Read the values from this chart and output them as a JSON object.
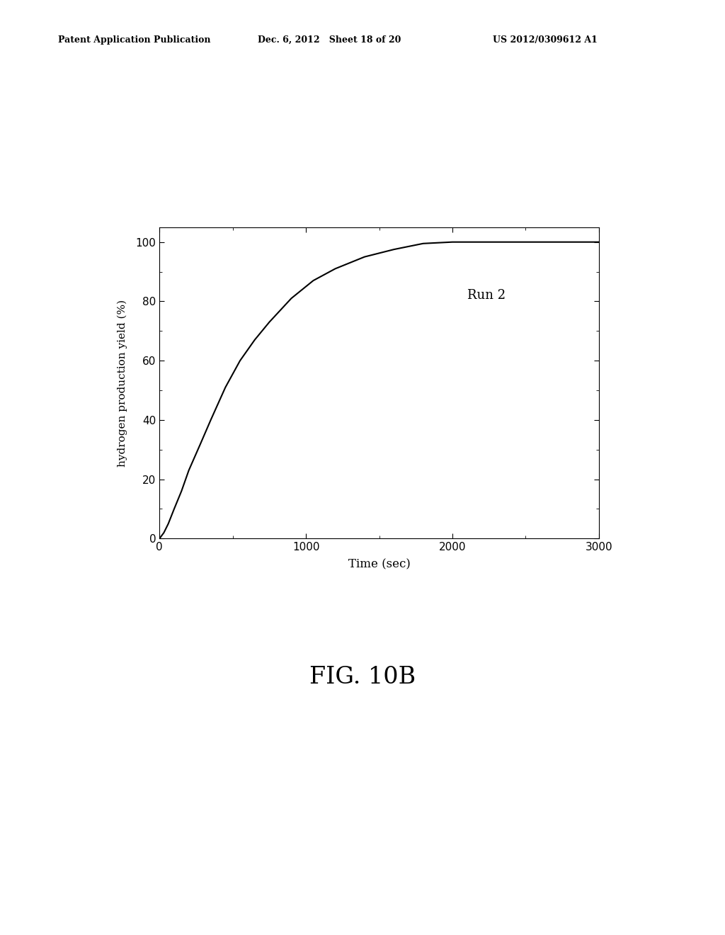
{
  "header_left": "Patent Application Publication",
  "header_center": "Dec. 6, 2012   Sheet 18 of 20",
  "header_right": "US 2012/0309612 A1",
  "figure_label": "FIG. 10B",
  "xlabel": "Time (sec)",
  "ylabel": "hydrogen production yield (%)",
  "annotation": "Run 2",
  "xlim": [
    0,
    3000
  ],
  "ylim": [
    0,
    105
  ],
  "xticks": [
    0,
    1000,
    2000,
    3000
  ],
  "yticks": [
    0,
    20,
    40,
    60,
    80,
    100
  ],
  "line_color": "#000000",
  "background_color": "#ffffff",
  "curve_x": [
    0,
    30,
    60,
    100,
    150,
    200,
    280,
    350,
    450,
    550,
    650,
    750,
    900,
    1050,
    1200,
    1400,
    1600,
    1800,
    2000,
    2500,
    3000
  ],
  "curve_y": [
    0,
    2,
    5,
    10,
    16,
    23,
    32,
    40,
    51,
    60,
    67,
    73,
    81,
    87,
    91,
    95,
    97.5,
    99.5,
    100,
    100,
    100
  ]
}
